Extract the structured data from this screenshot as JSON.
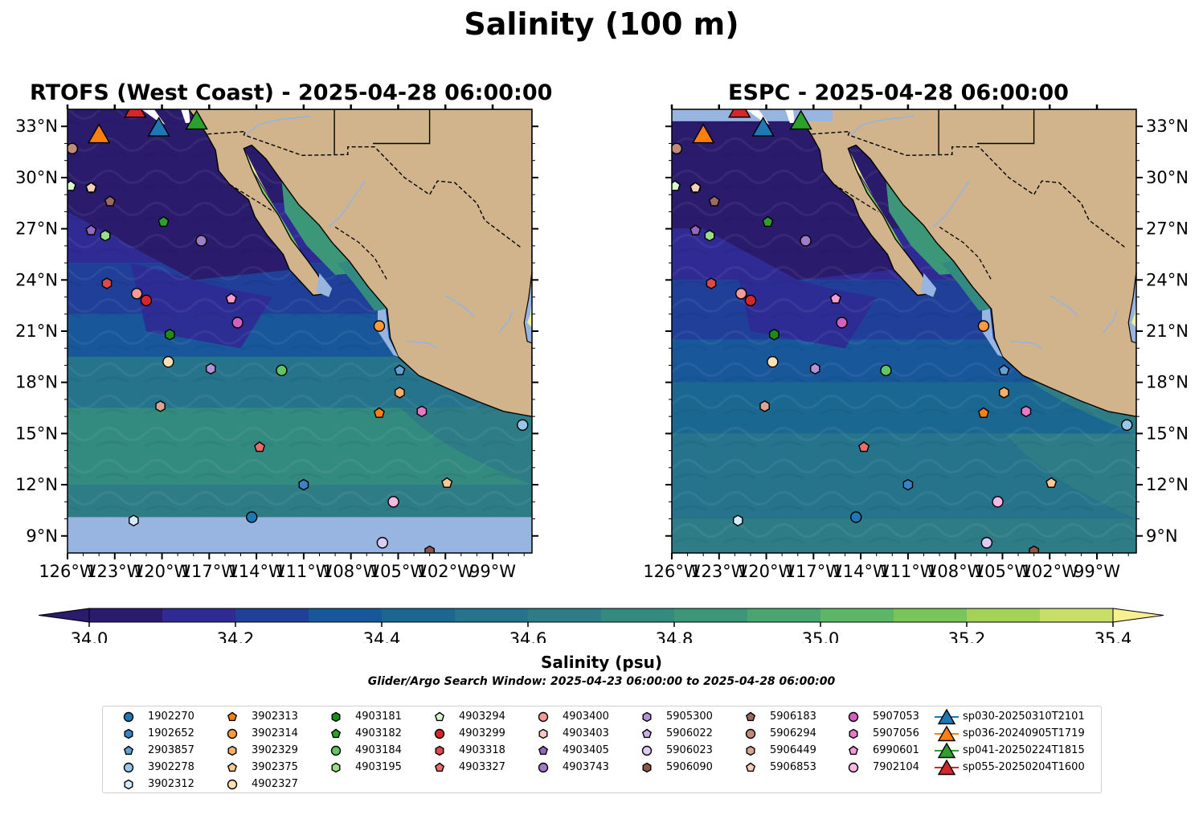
{
  "title": "Salinity (100 m)",
  "panels": [
    {
      "title": "RTOFS (West Coast) - 2025-04-28 06:00:00"
    },
    {
      "title": "ESPC - 2025-04-28 06:00:00"
    }
  ],
  "axes": {
    "lon_ticks": [
      "126°W",
      "123°W",
      "120°W",
      "117°W",
      "114°W",
      "111°W",
      "108°W",
      "105°W",
      "102°W",
      "99°W"
    ],
    "lat_ticks": [
      "33°N",
      "30°N",
      "27°N",
      "24°N",
      "21°N",
      "18°N",
      "15°N",
      "12°N",
      "9°N"
    ],
    "lon_range": [
      -126,
      -96.5
    ],
    "lat_range": [
      8,
      34
    ]
  },
  "colorbar": {
    "label": "Salinity (psu)",
    "ticks": [
      "34.0",
      "34.2",
      "34.4",
      "34.6",
      "34.8",
      "35.0",
      "35.2",
      "35.4"
    ],
    "min": 34.0,
    "max": 35.4,
    "step": 0.1,
    "extend": "both",
    "colors": [
      "#2a1b6c",
      "#2f2a94",
      "#1f3f98",
      "#17579a",
      "#1a6791",
      "#25748b",
      "#2e7d86",
      "#338a7f",
      "#3c9779",
      "#4aa671",
      "#5db568",
      "#7ac45c",
      "#a3d257",
      "#c7de67",
      "#f7ef92"
    ]
  },
  "search_window": "Glider/Argo Search Window: 2025-04-23 06:00:00 to 2025-04-28 06:00:00",
  "colors": {
    "land": "#d2b48c",
    "missing": "#97b5e0",
    "rivers": "#96b4dc"
  },
  "legend": {
    "columns": [
      [
        {
          "label": "1902270",
          "shape": "circle",
          "color": "#1f77b4"
        },
        {
          "label": "1902652",
          "shape": "hexagon",
          "color": "#3a82c4"
        },
        {
          "label": "2903857",
          "shape": "pentagon",
          "color": "#62a1d6"
        },
        {
          "label": "3902278",
          "shape": "circle",
          "color": "#9ac6e8"
        },
        {
          "label": "3902312",
          "shape": "hexagon",
          "color": "#d6ecfa"
        }
      ],
      [
        {
          "label": "3902313",
          "shape": "pentagon",
          "color": "#ff7f0e"
        },
        {
          "label": "3902314",
          "shape": "circle",
          "color": "#ff9a3d"
        },
        {
          "label": "3902329",
          "shape": "hexagon",
          "color": "#ffb066"
        },
        {
          "label": "3902375",
          "shape": "pentagon",
          "color": "#ffc88f"
        },
        {
          "label": "4902327",
          "shape": "circle",
          "color": "#ffe0b5"
        }
      ],
      [
        {
          "label": "4903181",
          "shape": "hexagon",
          "color": "#1c8c1c"
        },
        {
          "label": "4903182",
          "shape": "pentagon",
          "color": "#2ca02c"
        },
        {
          "label": "4903184",
          "shape": "circle",
          "color": "#63c463"
        },
        {
          "label": "4903195",
          "shape": "hexagon",
          "color": "#98df8a"
        }
      ],
      [
        {
          "label": "4903294",
          "shape": "pentagon",
          "color": "#d9f7d0"
        },
        {
          "label": "4903299",
          "shape": "circle",
          "color": "#d62728"
        },
        {
          "label": "4903318",
          "shape": "hexagon",
          "color": "#e0494a"
        },
        {
          "label": "4903327",
          "shape": "pentagon",
          "color": "#ee6b6b"
        }
      ],
      [
        {
          "label": "4903400",
          "shape": "circle",
          "color": "#f09a9a"
        },
        {
          "label": "4903403",
          "shape": "hexagon",
          "color": "#fcc6c6"
        },
        {
          "label": "4903405",
          "shape": "pentagon",
          "color": "#9467bd"
        },
        {
          "label": "4903743",
          "shape": "circle",
          "color": "#a07cc8"
        }
      ],
      [
        {
          "label": "5905300",
          "shape": "hexagon",
          "color": "#b293d8"
        },
        {
          "label": "5906022",
          "shape": "pentagon",
          "color": "#c5b0e8"
        },
        {
          "label": "5906023",
          "shape": "circle",
          "color": "#dccbf5"
        },
        {
          "label": "5906090",
          "shape": "hexagon",
          "color": "#8c564b"
        }
      ],
      [
        {
          "label": "5906183",
          "shape": "pentagon",
          "color": "#9c6a5e"
        },
        {
          "label": "5906294",
          "shape": "circle",
          "color": "#c08a7c"
        },
        {
          "label": "5906449",
          "shape": "hexagon",
          "color": "#d8a594"
        },
        {
          "label": "5906853",
          "shape": "pentagon",
          "color": "#f7cdbd"
        }
      ],
      [
        {
          "label": "5907053",
          "shape": "circle",
          "color": "#d45fc0"
        },
        {
          "label": "5907056",
          "shape": "hexagon",
          "color": "#e77ac8"
        },
        {
          "label": "6990601",
          "shape": "pentagon",
          "color": "#f49ad6"
        },
        {
          "label": "7902104",
          "shape": "circle",
          "color": "#fbb8e4"
        }
      ],
      [
        {
          "label": "sp030-20250310T2101",
          "shape": "triangle-line",
          "color": "#1f77b4"
        },
        {
          "label": "sp036-20240905T1719",
          "shape": "triangle-line",
          "color": "#ff7f0e"
        },
        {
          "label": "sp041-20250224T1815",
          "shape": "triangle-line",
          "color": "#2ca02c"
        },
        {
          "label": "sp055-20250204T1600",
          "shape": "triangle-line",
          "color": "#d62728"
        }
      ]
    ]
  },
  "floats": [
    {
      "id": "1902270",
      "lon": -114.3,
      "lat": 10.1
    },
    {
      "id": "1902652",
      "lon": -111.0,
      "lat": 12.0
    },
    {
      "id": "2903857",
      "lon": -104.9,
      "lat": 18.7
    },
    {
      "id": "3902278",
      "lon": -97.1,
      "lat": 15.5
    },
    {
      "id": "3902312",
      "lon": -121.8,
      "lat": 9.9
    },
    {
      "id": "3902313",
      "lon": -106.2,
      "lat": 16.2
    },
    {
      "id": "3902314",
      "lon": -106.2,
      "lat": 21.3
    },
    {
      "id": "3902329",
      "lon": -104.9,
      "lat": 17.4
    },
    {
      "id": "3902375",
      "lon": -101.9,
      "lat": 12.1
    },
    {
      "id": "4902327",
      "lon": -119.6,
      "lat": 19.2
    },
    {
      "id": "4903181",
      "lon": -119.5,
      "lat": 20.8
    },
    {
      "id": "4903182",
      "lon": -119.9,
      "lat": 27.4
    },
    {
      "id": "4903184",
      "lon": -112.4,
      "lat": 18.7
    },
    {
      "id": "4903195",
      "lon": -123.6,
      "lat": 26.6
    },
    {
      "id": "4903294",
      "lon": -125.8,
      "lat": 29.5
    },
    {
      "id": "4903299",
      "lon": -121.0,
      "lat": 22.8
    },
    {
      "id": "4903318",
      "lon": -123.5,
      "lat": 23.8
    },
    {
      "id": "4903327",
      "lon": -113.8,
      "lat": 14.2
    },
    {
      "id": "4903400",
      "lon": -121.6,
      "lat": 23.2
    },
    {
      "id": "4903403",
      "lon": -124.5,
      "lat": 29.4
    },
    {
      "id": "4903405",
      "lon": -124.5,
      "lat": 26.9
    },
    {
      "id": "4903743",
      "lon": -117.5,
      "lat": 26.3
    },
    {
      "id": "5905300",
      "lon": -116.9,
      "lat": 18.8
    },
    {
      "id": "5906022",
      "lon": -115.6,
      "lat": 22.9
    },
    {
      "id": "5906023",
      "lon": -106.0,
      "lat": 8.6
    },
    {
      "id": "5906090",
      "lon": -103.0,
      "lat": 8.1
    },
    {
      "id": "5906183",
      "lon": -123.3,
      "lat": 28.6
    },
    {
      "id": "5906294",
      "lon": -125.7,
      "lat": 31.7
    },
    {
      "id": "5906449",
      "lon": -120.1,
      "lat": 16.6
    },
    {
      "id": "5906853",
      "lon": -124.5,
      "lat": 29.4
    },
    {
      "id": "5907053",
      "lon": -115.2,
      "lat": 21.5
    },
    {
      "id": "5907056",
      "lon": -103.5,
      "lat": 16.3
    },
    {
      "id": "6990601",
      "lon": -115.6,
      "lat": 22.9
    },
    {
      "id": "7902104",
      "lon": -105.3,
      "lat": 11.0
    }
  ],
  "gliders": [
    {
      "id": "sp030-20250310T2101",
      "lon": -120.2,
      "lat": 32.9
    },
    {
      "id": "sp036-20240905T1719",
      "lon": -124.0,
      "lat": 32.5
    },
    {
      "id": "sp041-20250224T1815",
      "lon": -117.8,
      "lat": 33.3
    },
    {
      "id": "sp055-20250204T1600",
      "lon": -121.7,
      "lat": 34.0
    }
  ]
}
